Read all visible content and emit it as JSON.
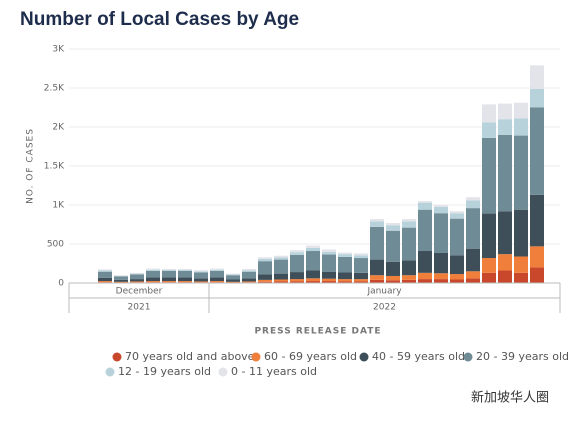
{
  "chart_data": {
    "type": "stacked_bar",
    "title": "Number of Local Cases by Age",
    "y_label": "NO. OF CASES",
    "x_label": "PRESS RELEASE DATE",
    "categories": [
      null,
      null,
      null,
      null,
      null,
      null,
      null,
      null,
      null,
      null,
      null,
      null,
      null,
      null,
      null,
      null,
      null,
      null,
      null,
      null,
      null,
      null,
      null,
      null,
      null,
      null,
      null,
      null
    ],
    "x_groups": [
      {
        "label": "December",
        "year": "2021",
        "bars": 7
      },
      {
        "label": "January",
        "year": "2022",
        "bars": 21
      }
    ],
    "ylim": [
      0,
      3000
    ],
    "yticks": [
      0,
      {
        "value": 500,
        "label": "500"
      },
      {
        "value": 1000,
        "label": "1K"
      },
      {
        "value": 1500,
        "label": "1.5K"
      },
      {
        "value": 2000,
        "label": "2K"
      },
      {
        "value": 2500,
        "label": "2.5K"
      },
      {
        "value": 3000,
        "label": "3K"
      }
    ],
    "grid": true,
    "series": [
      {
        "name": "70 years old and above",
        "color": "#c9472b",
        "values": [
          10,
          5,
          8,
          10,
          10,
          10,
          8,
          10,
          5,
          8,
          15,
          20,
          20,
          25,
          25,
          20,
          20,
          40,
          35,
          40,
          50,
          50,
          45,
          60,
          130,
          160,
          130,
          200
        ]
      },
      {
        "name": "60 - 69 years old",
        "color": "#f07f3c",
        "values": [
          15,
          10,
          12,
          15,
          15,
          15,
          12,
          15,
          10,
          12,
          25,
          25,
          30,
          35,
          30,
          30,
          30,
          60,
          55,
          60,
          80,
          75,
          70,
          90,
          190,
          210,
          210,
          270
        ]
      },
      {
        "name": "40 - 59 years old",
        "color": "#3e4f59",
        "values": [
          40,
          25,
          30,
          45,
          45,
          45,
          40,
          45,
          30,
          40,
          70,
          75,
          90,
          100,
          90,
          85,
          80,
          200,
          180,
          190,
          280,
          260,
          240,
          290,
          570,
          550,
          600,
          660
        ]
      },
      {
        "name": "20 - 39 years old",
        "color": "#6f8b95",
        "values": [
          80,
          45,
          60,
          85,
          85,
          85,
          75,
          85,
          55,
          85,
          170,
          180,
          220,
          250,
          220,
          200,
          190,
          420,
          400,
          420,
          530,
          510,
          470,
          520,
          970,
          980,
          950,
          1120
        ]
      },
      {
        "name": "12 - 19 years old",
        "color": "#b8d2db",
        "values": [
          15,
          8,
          10,
          15,
          15,
          15,
          15,
          15,
          10,
          15,
          30,
          30,
          35,
          40,
          35,
          35,
          35,
          70,
          70,
          80,
          90,
          80,
          70,
          100,
          200,
          200,
          220,
          240
        ]
      },
      {
        "name": "0 - 11 years old",
        "color": "#e2e4ea",
        "values": [
          15,
          7,
          10,
          15,
          10,
          10,
          15,
          15,
          10,
          20,
          20,
          20,
          25,
          30,
          30,
          20,
          25,
          30,
          30,
          30,
          20,
          25,
          25,
          40,
          230,
          200,
          200,
          300
        ]
      }
    ],
    "watermark": "新加坡华人圈"
  }
}
